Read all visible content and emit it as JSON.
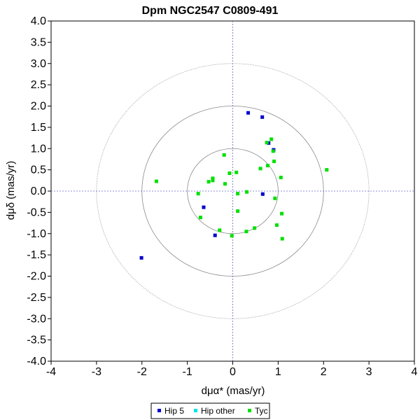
{
  "chart_data": {
    "type": "scatter",
    "title": "Dpm NGC2547  C0809-491",
    "xlabel": "dμα* (mas/yr)",
    "ylabel": "dμδ (mas/yr)",
    "xlim": [
      -4,
      4
    ],
    "ylim": [
      -4,
      4
    ],
    "x_ticks": [
      "-4",
      "-3",
      "-2",
      "-1",
      "0",
      "1",
      "2",
      "3",
      "4"
    ],
    "y_ticks": [
      "4.0",
      "3.5",
      "3.0",
      "2.5",
      "2.0",
      "1.5",
      "1.0",
      "0.5",
      "0.0",
      "-0.5",
      "-1.0",
      "-1.5",
      "-2.0",
      "-2.5",
      "-3.0",
      "-3.5",
      "-4.0"
    ],
    "circle_radii": [
      1,
      2,
      3
    ],
    "grid": false,
    "legend_position": "bottom",
    "series": [
      {
        "name": "Hip 5",
        "color": "#0000cc",
        "points": [
          [
            0.34,
            1.84
          ],
          [
            0.65,
            1.74
          ],
          [
            0.79,
            1.13
          ],
          [
            0.9,
            0.97
          ],
          [
            0.66,
            -0.07
          ],
          [
            -0.64,
            -0.38
          ],
          [
            -0.39,
            -1.04
          ],
          [
            -2.01,
            -1.57
          ]
        ]
      },
      {
        "name": "Hip other",
        "color": "#00e5e5",
        "points": []
      },
      {
        "name": "Tyc",
        "color": "#00e000",
        "points": [
          [
            0.85,
            1.22
          ],
          [
            0.75,
            1.14
          ],
          [
            -0.19,
            0.85
          ],
          [
            0.89,
            0.94
          ],
          [
            0.91,
            0.7
          ],
          [
            0.77,
            0.6
          ],
          [
            0.61,
            0.53
          ],
          [
            2.07,
            0.5
          ],
          [
            0.08,
            0.44
          ],
          [
            -0.07,
            0.42
          ],
          [
            1.06,
            0.32
          ],
          [
            -0.44,
            0.3
          ],
          [
            -0.44,
            0.25
          ],
          [
            -0.53,
            0.22
          ],
          [
            -1.68,
            0.23
          ],
          [
            -0.17,
            0.17
          ],
          [
            -0.76,
            -0.06
          ],
          [
            0.11,
            -0.06
          ],
          [
            0.31,
            -0.02
          ],
          [
            0.93,
            -0.17
          ],
          [
            -0.71,
            -0.62
          ],
          [
            0.11,
            -0.47
          ],
          [
            1.08,
            -0.53
          ],
          [
            0.97,
            -0.8
          ],
          [
            0.48,
            -0.87
          ],
          [
            0.3,
            -0.95
          ],
          [
            -0.29,
            -0.92
          ],
          [
            -0.02,
            -1.05
          ],
          [
            1.09,
            -1.12
          ]
        ]
      }
    ]
  }
}
